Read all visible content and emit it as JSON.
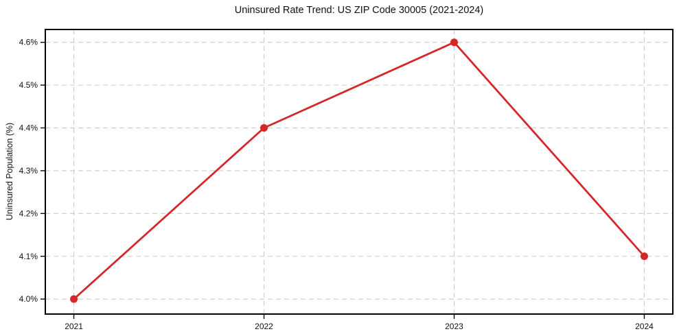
{
  "chart_data": {
    "type": "line",
    "title": "Uninsured Rate Trend: US ZIP Code 30005 (2021-2024)",
    "xlabel": "",
    "ylabel": "Uninsured Population (%)",
    "x": [
      2021,
      2022,
      2023,
      2024
    ],
    "values": [
      4.0,
      4.4,
      4.6,
      4.1
    ],
    "xticks": [
      2021,
      2022,
      2023,
      2024
    ],
    "xtick_labels": [
      "2021",
      "2022",
      "2023",
      "2024"
    ],
    "yticks": [
      4.0,
      4.1,
      4.2,
      4.3,
      4.4,
      4.5,
      4.6
    ],
    "ytick_labels": [
      "4.0%",
      "4.1%",
      "4.2%",
      "4.3%",
      "4.4%",
      "4.5%",
      "4.6%"
    ],
    "xlim": [
      2020.85,
      2024.15
    ],
    "ylim": [
      3.965,
      4.63
    ],
    "grid": true,
    "grid_style": "dashed",
    "legend": "none",
    "marker": "circle",
    "colors": {
      "line": "#d62728",
      "marker": "#d62728",
      "grid": "#cbcbcb",
      "spine": "#000000",
      "text": "#111111"
    }
  }
}
